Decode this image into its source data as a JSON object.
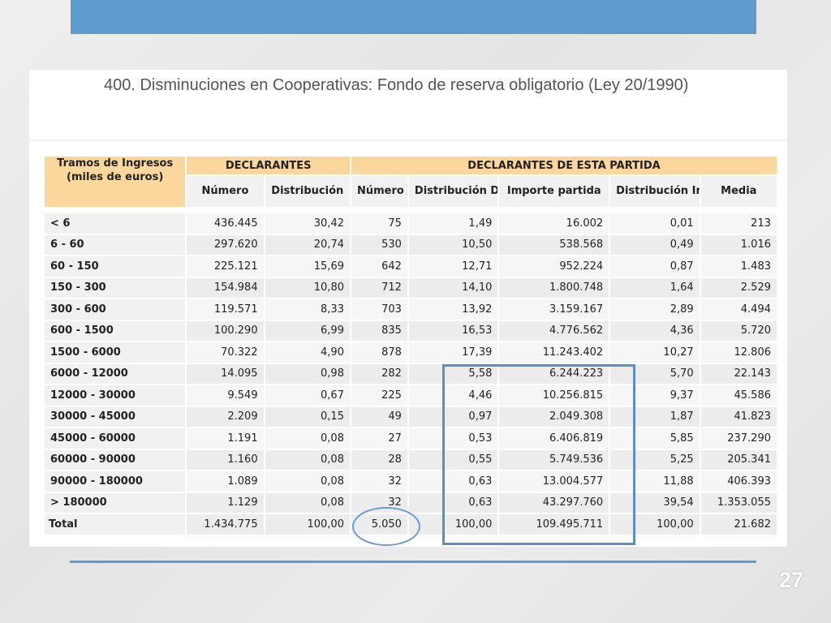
{
  "slide": {
    "title": "400. Disminuciones en Cooperativas: Fondo de reserva obligatorio (Ley 20/1990)",
    "page_number": "27"
  },
  "table": {
    "tramos_header_line1": "Tramos de Ingresos",
    "tramos_header_line2": "(miles de euros)",
    "group_declarantes": "DECLARANTES",
    "group_partida": "DECLARANTES DE ESTA PARTIDA",
    "col_numero": "Número",
    "col_distribucion": "Distribución",
    "col_numero2": "Número",
    "col_dist_declarantes": "Distribución Declarantes",
    "col_importe": "Importe partida",
    "col_dist_importe": "Distribución Importe",
    "col_media": "Media",
    "rows": [
      {
        "tramo": "< 6",
        "numero": "436.445",
        "distribucion": "30,42",
        "numero2": "75",
        "dist_decl": "1,49",
        "importe": "16.002",
        "dist_imp": "0,01",
        "media": "213"
      },
      {
        "tramo": "6 - 60",
        "numero": "297.620",
        "distribucion": "20,74",
        "numero2": "530",
        "dist_decl": "10,50",
        "importe": "538.568",
        "dist_imp": "0,49",
        "media": "1.016"
      },
      {
        "tramo": "60 - 150",
        "numero": "225.121",
        "distribucion": "15,69",
        "numero2": "642",
        "dist_decl": "12,71",
        "importe": "952.224",
        "dist_imp": "0,87",
        "media": "1.483"
      },
      {
        "tramo": "150 - 300",
        "numero": "154.984",
        "distribucion": "10,80",
        "numero2": "712",
        "dist_decl": "14,10",
        "importe": "1.800.748",
        "dist_imp": "1,64",
        "media": "2.529"
      },
      {
        "tramo": "300 - 600",
        "numero": "119.571",
        "distribucion": "8,33",
        "numero2": "703",
        "dist_decl": "13,92",
        "importe": "3.159.167",
        "dist_imp": "2,89",
        "media": "4.494"
      },
      {
        "tramo": "600 - 1500",
        "numero": "100.290",
        "distribucion": "6,99",
        "numero2": "835",
        "dist_decl": "16,53",
        "importe": "4.776.562",
        "dist_imp": "4,36",
        "media": "5.720"
      },
      {
        "tramo": "1500 - 6000",
        "numero": "70.322",
        "distribucion": "4,90",
        "numero2": "878",
        "dist_decl": "17,39",
        "importe": "11.243.402",
        "dist_imp": "10,27",
        "media": "12.806"
      },
      {
        "tramo": "6000 - 12000",
        "numero": "14.095",
        "distribucion": "0,98",
        "numero2": "282",
        "dist_decl": "5,58",
        "importe": "6.244.223",
        "dist_imp": "5,70",
        "media": "22.143"
      },
      {
        "tramo": "12000 - 30000",
        "numero": "9.549",
        "distribucion": "0,67",
        "numero2": "225",
        "dist_decl": "4,46",
        "importe": "10.256.815",
        "dist_imp": "9,37",
        "media": "45.586"
      },
      {
        "tramo": "30000 - 45000",
        "numero": "2.209",
        "distribucion": "0,15",
        "numero2": "49",
        "dist_decl": "0,97",
        "importe": "2.049.308",
        "dist_imp": "1,87",
        "media": "41.823"
      },
      {
        "tramo": "45000 - 60000",
        "numero": "1.191",
        "distribucion": "0,08",
        "numero2": "27",
        "dist_decl": "0,53",
        "importe": "6.406.819",
        "dist_imp": "5,85",
        "media": "237.290"
      },
      {
        "tramo": "60000 - 90000",
        "numero": "1.160",
        "distribucion": "0,08",
        "numero2": "28",
        "dist_decl": "0,55",
        "importe": "5.749.536",
        "dist_imp": "5,25",
        "media": "205.341"
      },
      {
        "tramo": "90000 - 180000",
        "numero": "1.089",
        "distribucion": "0,08",
        "numero2": "32",
        "dist_decl": "0,63",
        "importe": "13.004.577",
        "dist_imp": "11,88",
        "media": "406.393"
      },
      {
        "tramo": "> 180000",
        "numero": "1.129",
        "distribucion": "0,08",
        "numero2": "32",
        "dist_decl": "0,63",
        "importe": "43.297.760",
        "dist_imp": "39,54",
        "media": "1.353.055"
      }
    ],
    "total": {
      "tramo": "Total",
      "numero": "1.434.775",
      "distribucion": "100,00",
      "numero2": "5.050",
      "dist_decl": "100,00",
      "importe": "109.495.711",
      "dist_imp": "100,00",
      "media": "21.682"
    }
  },
  "colors": {
    "accent_blue": "#5f9bcf",
    "header_orange": "#fbd79e",
    "highlight_blue": "#5f8fc0"
  }
}
